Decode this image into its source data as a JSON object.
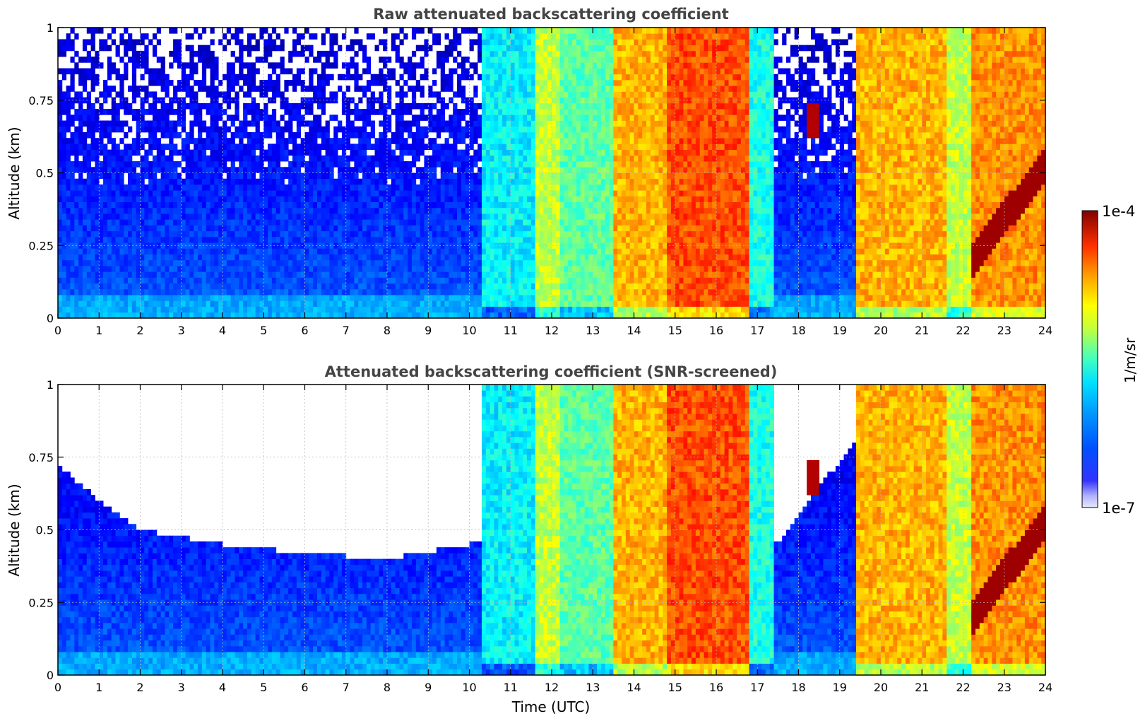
{
  "chart_data": [
    {
      "type": "heatmap",
      "title": "Raw attenuated backscattering coefficient",
      "xlabel": "",
      "ylabel": "Altitude (km)",
      "xlim": [
        0,
        24
      ],
      "ylim": [
        0,
        1
      ],
      "x_ticks": [
        "0",
        "1",
        "2",
        "3",
        "4",
        "5",
        "6",
        "7",
        "8",
        "9",
        "10",
        "11",
        "12",
        "13",
        "14",
        "15",
        "16",
        "17",
        "18",
        "19",
        "20",
        "21",
        "22",
        "23",
        "24"
      ],
      "y_ticks": [
        "0",
        "0.25",
        "0.5",
        "0.75",
        "1"
      ],
      "grid": true,
      "colorscale": "jet",
      "scale": "log",
      "screened": false,
      "profile_by_hour": [
        {
          "t0": 0,
          "t1": 10.3,
          "value_log10": -6.9,
          "level": "clear"
        },
        {
          "t0": 10.3,
          "t1": 11.6,
          "value_log10": -5.9,
          "level": "cyan-green"
        },
        {
          "t0": 11.6,
          "t1": 12.2,
          "value_log10": -5.3,
          "level": "yellow"
        },
        {
          "t0": 12.2,
          "t1": 13.5,
          "value_log10": -5.6,
          "level": "green-yellow"
        },
        {
          "t0": 13.5,
          "t1": 14.8,
          "value_log10": -4.9,
          "level": "orange"
        },
        {
          "t0": 14.8,
          "t1": 15.6,
          "value_log10": -4.6,
          "level": "red"
        },
        {
          "t0": 15.6,
          "t1": 16.8,
          "value_log10": -4.6,
          "level": "red"
        },
        {
          "t0": 16.8,
          "t1": 17.4,
          "value_log10": -5.8,
          "level": "cyan"
        },
        {
          "t0": 17.4,
          "t1": 19.4,
          "value_log10": -6.9,
          "level": "clear"
        },
        {
          "t0": 19.4,
          "t1": 21.6,
          "value_log10": -4.9,
          "level": "orange"
        },
        {
          "t0": 21.6,
          "t1": 22.2,
          "value_log10": -5.3,
          "level": "yellow"
        },
        {
          "t0": 22.2,
          "t1": 24,
          "value_log10": -4.8,
          "level": "orange"
        }
      ]
    },
    {
      "type": "heatmap",
      "title": "Attenuated backscattering coefficient (SNR-screened)",
      "xlabel": "Time (UTC)",
      "ylabel": "Altitude (km)",
      "xlim": [
        0,
        24
      ],
      "ylim": [
        0,
        1
      ],
      "x_ticks": [
        "0",
        "1",
        "2",
        "3",
        "4",
        "5",
        "6",
        "7",
        "8",
        "9",
        "10",
        "11",
        "12",
        "13",
        "14",
        "15",
        "16",
        "17",
        "18",
        "19",
        "20",
        "21",
        "22",
        "23",
        "24"
      ],
      "y_ticks": [
        "0",
        "0.25",
        "0.5",
        "0.75",
        "1"
      ],
      "grid": true,
      "colorscale": "jet",
      "scale": "log",
      "screened": true,
      "screened_top_km": [
        {
          "t": 0,
          "top": 0.72
        },
        {
          "t": 1,
          "top": 0.6
        },
        {
          "t": 2,
          "top": 0.5
        },
        {
          "t": 4,
          "top": 0.45
        },
        {
          "t": 6,
          "top": 0.42
        },
        {
          "t": 8,
          "top": 0.4
        },
        {
          "t": 10,
          "top": 0.45
        },
        {
          "t": 17.5,
          "top": 0.45
        },
        {
          "t": 18.5,
          "top": 0.65
        },
        {
          "t": 19.4,
          "top": 0.8
        }
      ]
    }
  ],
  "colorbar": {
    "label": "1/m/sr",
    "max_label": "1e-4",
    "min_label": "1e-7",
    "scale": "log"
  }
}
